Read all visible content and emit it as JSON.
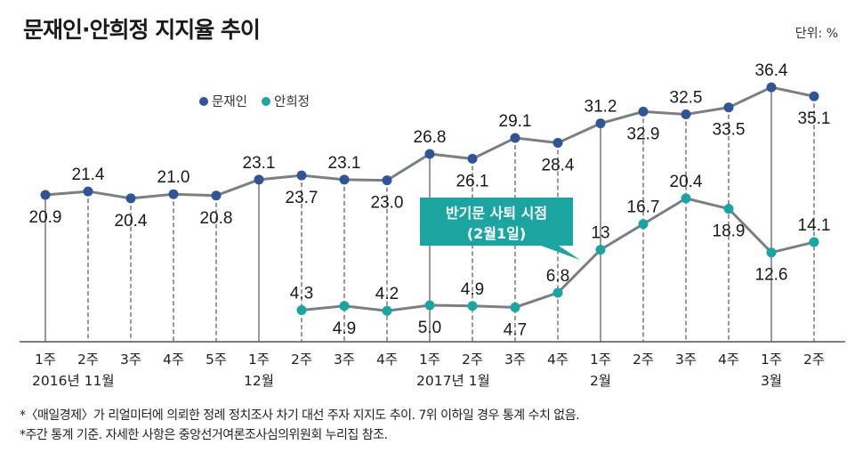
{
  "header": {
    "title": "문재인·안희정 지지율 추이",
    "unit": "단위: %"
  },
  "colors": {
    "moon": "#2f5597",
    "ahn": "#18a6a2",
    "line": "#7b7f83",
    "callout": "#1aa5a1",
    "axis": "#555555"
  },
  "chart_data": {
    "type": "line",
    "title": "문재인·안희정 지지율 추이",
    "unit": "단위: %",
    "xlabel": "",
    "ylabel": "",
    "ylim": [
      0,
      40
    ],
    "grid": false,
    "legend_position": "top-left",
    "legend": [
      "문재인",
      "안희정"
    ],
    "x": [
      "1주",
      "2주",
      "3주",
      "4주",
      "5주",
      "1주",
      "2주",
      "3주",
      "4주",
      "1주",
      "2주",
      "3주",
      "4주",
      "1주",
      "2주",
      "3주",
      "4주",
      "1주",
      "2주"
    ],
    "month_labels": [
      {
        "index": 0,
        "label": "2016년 11월"
      },
      {
        "index": 5,
        "label": "12월"
      },
      {
        "index": 9,
        "label": "2017년 1월"
      },
      {
        "index": 13,
        "label": "2월"
      },
      {
        "index": 17,
        "label": "3월"
      }
    ],
    "series": [
      {
        "name": "문재인",
        "values": [
          20.9,
          21.4,
          20.4,
          21.0,
          20.8,
          23.1,
          23.7,
          23.1,
          23.0,
          26.8,
          26.1,
          29.1,
          28.4,
          31.2,
          32.9,
          32.5,
          33.5,
          36.4,
          35.1
        ],
        "labels": [
          "20.9",
          "21.4",
          "20.4",
          "21.0",
          "20.8",
          "23.1",
          "23.7",
          "23.1",
          "23.0",
          "26.8",
          "26.1",
          "29.1",
          "28.4",
          "31.2",
          "32.9",
          "32.5",
          "33.5",
          "36.4",
          "35.1"
        ],
        "label_pos": [
          "below",
          "above",
          "below",
          "above",
          "below",
          "above",
          "below",
          "above",
          "below",
          "above",
          "below",
          "above",
          "below",
          "above",
          "below",
          "above",
          "below",
          "above",
          "below"
        ]
      },
      {
        "name": "안희정",
        "start_index": 6,
        "values": [
          null,
          null,
          null,
          null,
          null,
          null,
          4.3,
          4.9,
          4.2,
          5.0,
          4.9,
          4.7,
          6.8,
          13,
          16.7,
          20.4,
          18.9,
          12.6,
          14.1
        ],
        "labels": [
          null,
          null,
          null,
          null,
          null,
          null,
          "4.3",
          "4.9",
          "4.2",
          "5.0",
          "4.9",
          "4.7",
          "6.8",
          "13",
          "16.7",
          "20.4",
          "18.9",
          "12.6",
          "14.1"
        ],
        "label_pos": [
          null,
          null,
          null,
          null,
          null,
          null,
          "above",
          "below",
          "above",
          "below",
          "above",
          "below",
          "above",
          "above",
          "above",
          "above",
          "below",
          "below",
          "above"
        ]
      }
    ],
    "annotations": [
      {
        "text_line1": "반기문 사퇴 시점",
        "text_line2": "(2월1일)",
        "points_to_index": 12.5
      }
    ]
  },
  "notes": [
    "*〈매일경제〉가 리얼미터에 의뢰한 정례 정치조사 차기 대선 주자 지지도 추이. 7위 이하일 경우 통계 수치 없음.",
    "*주간 통계 기준. 자세한 사항은 중앙선거여론조사심의위원회 누리집 참조."
  ]
}
